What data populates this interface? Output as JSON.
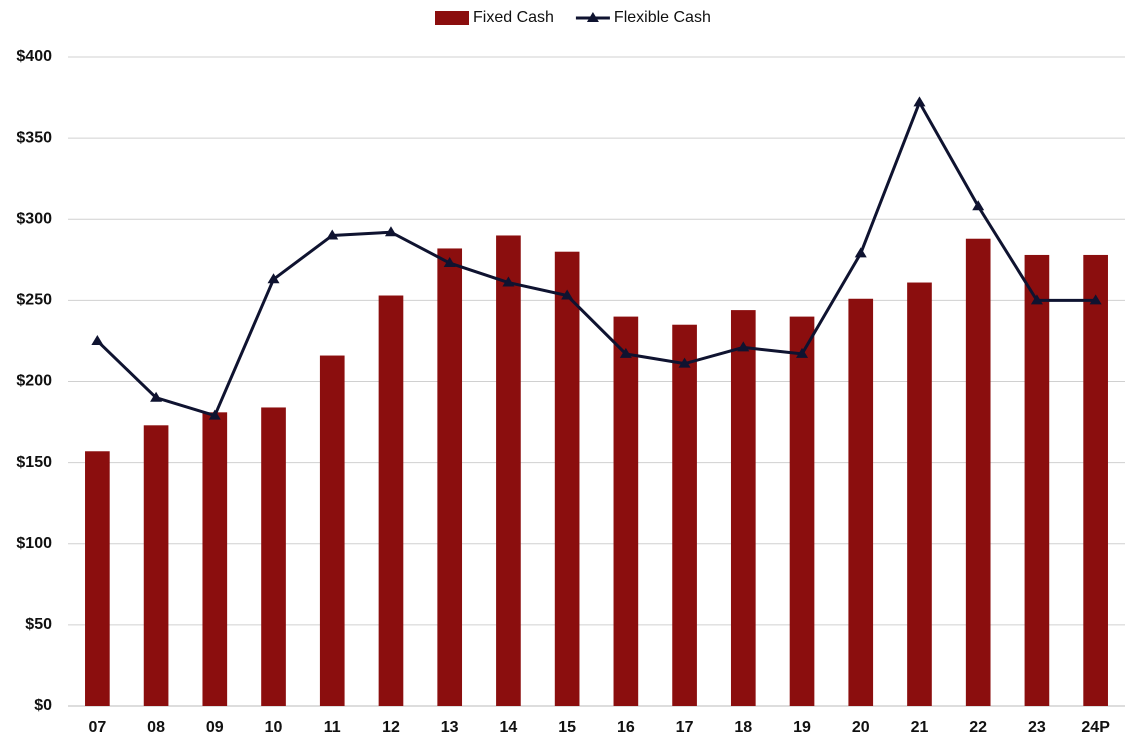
{
  "chart_data": {
    "type": "bar-line",
    "categories": [
      "07",
      "08",
      "09",
      "10",
      "11",
      "12",
      "13",
      "14",
      "15",
      "16",
      "17",
      "18",
      "19",
      "20",
      "21",
      "22",
      "23",
      "24P"
    ],
    "series": [
      {
        "name": "Fixed Cash",
        "type": "bar",
        "color": "#8b0e0e",
        "values": [
          157,
          173,
          181,
          184,
          216,
          253,
          282,
          290,
          280,
          240,
          235,
          244,
          240,
          251,
          261,
          288,
          278,
          278
        ]
      },
      {
        "name": "Flexible Cash",
        "type": "line",
        "color": "#0f1330",
        "values": [
          225,
          190,
          179,
          263,
          290,
          292,
          273,
          261,
          253,
          217,
          211,
          221,
          217,
          279,
          372,
          308,
          250,
          250
        ]
      }
    ],
    "ylim": [
      0,
      400
    ],
    "yticks": [
      {
        "value": 0,
        "label": "$0"
      },
      {
        "value": 50,
        "label": "$50"
      },
      {
        "value": 100,
        "label": "$100"
      },
      {
        "value": 150,
        "label": "$150"
      },
      {
        "value": 200,
        "label": "$200"
      },
      {
        "value": 250,
        "label": "$250"
      },
      {
        "value": 300,
        "label": "$300"
      },
      {
        "value": 350,
        "label": "$350"
      },
      {
        "value": 400,
        "label": "$400"
      }
    ],
    "grid": true,
    "legend": "top"
  }
}
